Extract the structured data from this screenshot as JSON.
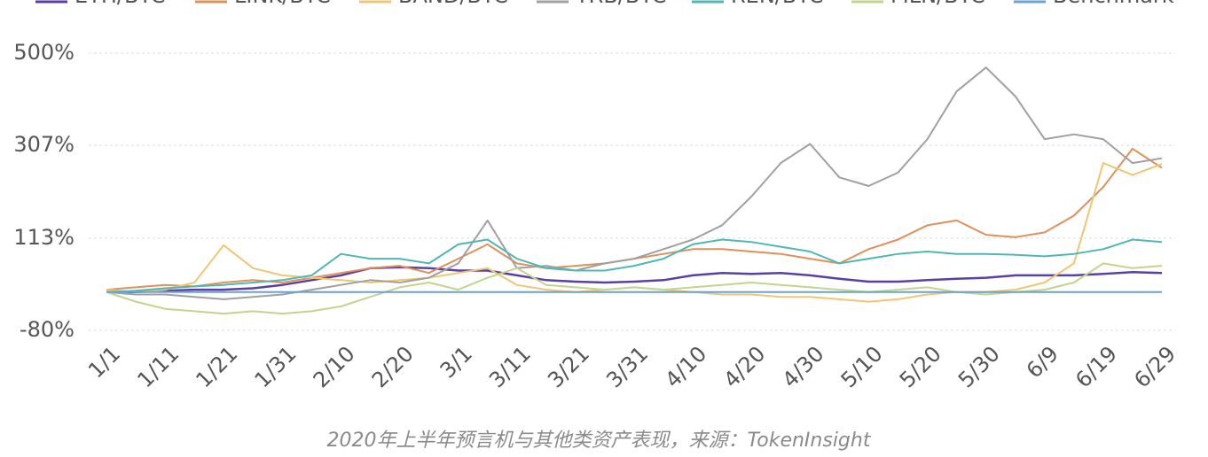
{
  "chart_data": {
    "type": "line",
    "caption": "2020年上半年预言机与其他类资产表现，来源：TokenInsight",
    "categories": [
      "1/1",
      null,
      "1/11",
      null,
      "1/21",
      null,
      "1/31",
      null,
      "2/10",
      null,
      "2/20",
      null,
      "3/1",
      null,
      "3/11",
      null,
      "3/21",
      null,
      "3/31",
      null,
      "4/10",
      null,
      "4/20",
      null,
      "4/30",
      null,
      "5/10",
      null,
      "5/20",
      null,
      "5/30",
      null,
      "6/9",
      null,
      "6/19",
      null,
      "6/29"
    ],
    "series": [
      {
        "name": "ETH/BTC",
        "color": "#5b3fa8",
        "values": [
          0,
          0,
          3,
          5,
          5,
          8,
          15,
          25,
          35,
          50,
          52,
          50,
          45,
          45,
          35,
          25,
          22,
          20,
          22,
          25,
          35,
          40,
          38,
          40,
          35,
          28,
          22,
          22,
          25,
          28,
          30,
          35,
          35,
          35,
          38,
          42,
          40
        ]
      },
      {
        "name": "LINK/BTC",
        "color": "#e0905a",
        "values": [
          5,
          10,
          15,
          12,
          20,
          25,
          20,
          30,
          40,
          50,
          55,
          40,
          70,
          100,
          60,
          50,
          55,
          60,
          70,
          80,
          90,
          90,
          85,
          80,
          70,
          60,
          90,
          110,
          140,
          150,
          120,
          115,
          125,
          160,
          220,
          300,
          260
        ]
      },
      {
        "name": "BAND/BTC",
        "color": "#efc673",
        "values": [
          5,
          0,
          5,
          20,
          98,
          50,
          35,
          30,
          25,
          20,
          25,
          30,
          40,
          50,
          15,
          5,
          0,
          5,
          10,
          5,
          0,
          -5,
          -5,
          -10,
          -10,
          -15,
          -20,
          -15,
          -5,
          0,
          0,
          5,
          20,
          60,
          270,
          245,
          268
        ]
      },
      {
        "name": "TRB/BTC",
        "color": "#a0a0a0",
        "values": [
          0,
          -5,
          -5,
          -10,
          -15,
          -10,
          -5,
          5,
          15,
          25,
          20,
          30,
          60,
          150,
          50,
          55,
          45,
          60,
          70,
          90,
          110,
          140,
          200,
          270,
          310,
          240,
          222,
          250,
          320,
          420,
          470,
          410,
          320,
          330,
          320,
          270,
          280
        ]
      },
      {
        "name": "REN/BTC",
        "color": "#4fb8b4",
        "values": [
          0,
          3,
          8,
          12,
          15,
          20,
          25,
          35,
          80,
          70,
          70,
          60,
          100,
          110,
          70,
          50,
          45,
          45,
          55,
          70,
          100,
          110,
          105,
          95,
          85,
          60,
          70,
          80,
          85,
          80,
          80,
          78,
          75,
          80,
          90,
          110,
          105
        ]
      },
      {
        "name": "MLN/BTC",
        "color": "#c3d48c",
        "values": [
          0,
          -20,
          -35,
          -40,
          -45,
          -40,
          -45,
          -40,
          -30,
          -10,
          10,
          20,
          5,
          30,
          50,
          15,
          10,
          5,
          10,
          5,
          10,
          15,
          20,
          15,
          10,
          5,
          0,
          5,
          10,
          0,
          -5,
          0,
          5,
          20,
          60,
          50,
          55
        ]
      },
      {
        "name": "Benchmark",
        "color": "#6aa2d8",
        "values": [
          0,
          0,
          0,
          0,
          0,
          0,
          0,
          0,
          0,
          0,
          0,
          0,
          0,
          0,
          0,
          0,
          0,
          0,
          0,
          0,
          0,
          0,
          0,
          0,
          0,
          0,
          0,
          0,
          0,
          0,
          0,
          0,
          0,
          0,
          0,
          0,
          0
        ]
      }
    ],
    "ylim": [
      -80,
      500
    ],
    "yticks": [
      {
        "value": -80,
        "label": "-80%"
      },
      {
        "value": 113,
        "label": "113%"
      },
      {
        "value": 307,
        "label": "307%"
      },
      {
        "value": 500,
        "label": "500%"
      }
    ],
    "grid": true,
    "legend": "top"
  }
}
